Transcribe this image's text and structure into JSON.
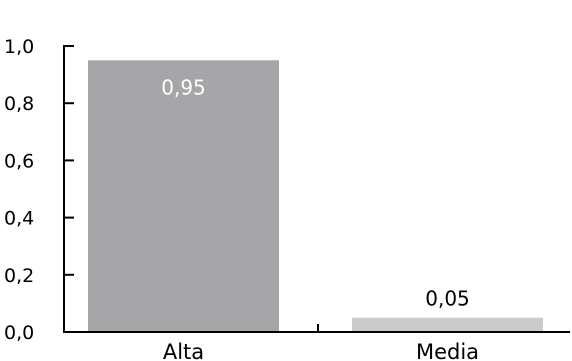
{
  "chart_data": {
    "type": "bar",
    "categories": [
      "Alta",
      "Media"
    ],
    "values": [
      0.95,
      0.05
    ],
    "value_labels": [
      "0,95",
      "0,05"
    ],
    "ylim": [
      0,
      1.0
    ],
    "yticks": [
      0.0,
      0.2,
      0.4,
      0.6,
      0.8,
      1.0
    ],
    "ytick_labels": [
      "0,0",
      "0,2",
      "0,4",
      "0,6",
      "0,8",
      "1,0"
    ],
    "bar_colors": [
      "#a6a6a9",
      "#cbcbcd"
    ],
    "label_colors": [
      "#ffffff",
      "#000000"
    ],
    "label_positions": [
      "inside-top",
      "above"
    ],
    "grid": false,
    "legend": "none"
  }
}
